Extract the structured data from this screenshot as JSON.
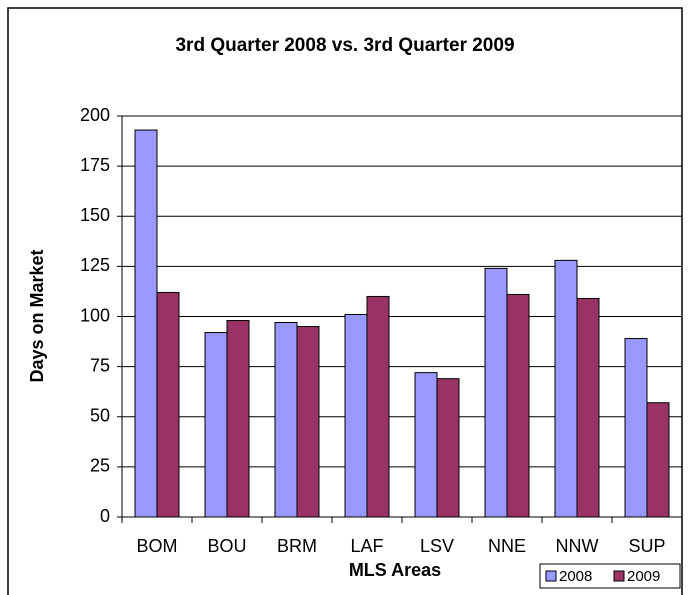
{
  "chart_data": {
    "type": "bar",
    "title": "3rd Quarter 2008 vs. 3rd Quarter 2009",
    "x_label": "MLS Areas",
    "y_label": "Days on Market",
    "categories": [
      "BOM",
      "BOU",
      "BRM",
      "LAF",
      "LSV",
      "NNE",
      "NNW",
      "SUP"
    ],
    "series": [
      {
        "name": "2008",
        "color": "#9999ff",
        "values": [
          193,
          92,
          97,
          101,
          72,
          124,
          128,
          89
        ]
      },
      {
        "name": "2009",
        "color": "#993366",
        "values": [
          112,
          98,
          95,
          110,
          69,
          111,
          109,
          57
        ]
      }
    ],
    "ylim": [
      0,
      200
    ],
    "yticks": [
      0,
      25,
      50,
      75,
      100,
      125,
      150,
      175,
      200
    ],
    "grid": true,
    "legend": "bottom-right"
  }
}
